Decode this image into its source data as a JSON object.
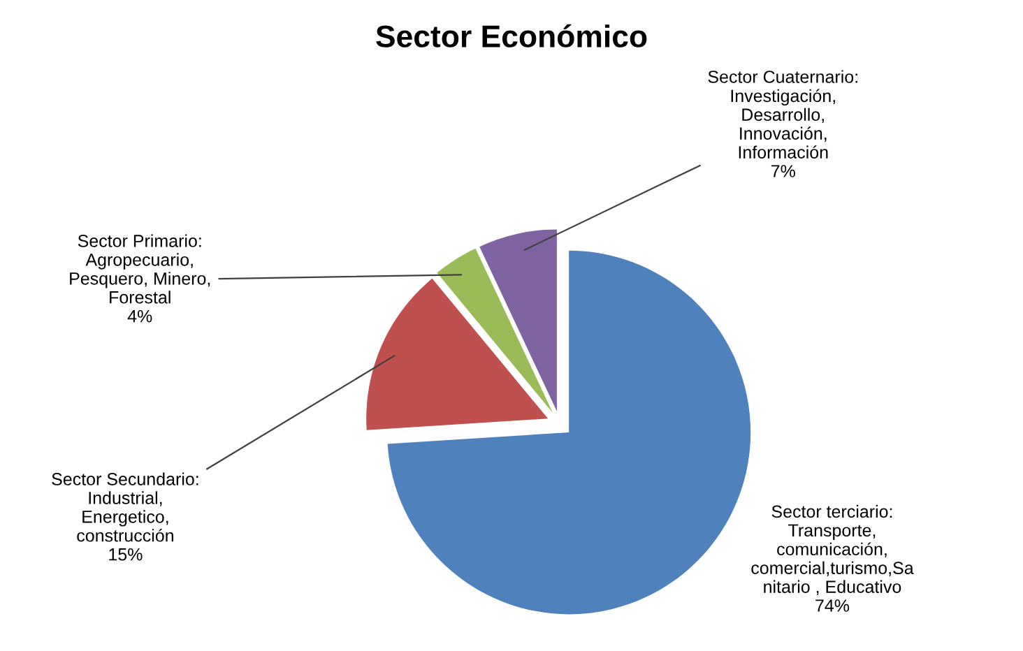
{
  "chart_data": {
    "type": "pie",
    "title": "Sector Económico",
    "categories": [
      "Sector terciario:\nTransporte,\ncomunicación,\ncomercial,turismo,Sa\nnitario , Educativo",
      "Sector Secundario:\nIndustrial,\nEnergetico,\nconstrucción",
      "Sector Primario:\nAgropecuario,\nPesquero, Minero,\nForestal",
      "Sector Cuaternario:\nInvestigación,\nDesarrollo,\nInnovación,\nInformación"
    ],
    "values": [
      74,
      15,
      4,
      7
    ],
    "value_labels": [
      "74%",
      "15%",
      "4%",
      "7%"
    ],
    "colors": [
      "#4f81bd",
      "#c0504d",
      "#9bbb59",
      "#8064a2"
    ],
    "legend": false
  }
}
